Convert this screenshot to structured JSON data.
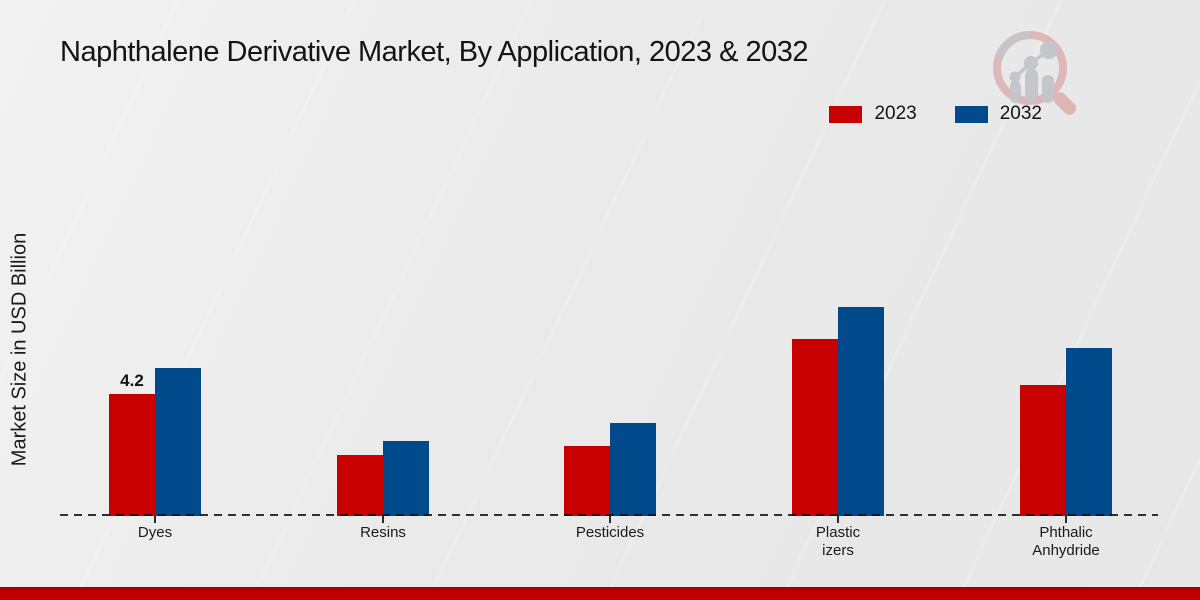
{
  "title": "Naphthalene Derivative Market, By Application, 2023 & 2032",
  "legend": [
    {
      "label": "2023",
      "color": "#c80000"
    },
    {
      "label": "2032",
      "color": "#00498a"
    }
  ],
  "watermark_icon": "magnifier-growth-chart-logo",
  "footer": {
    "band_color": "#c00000",
    "band_edge_color": "#9c0000"
  },
  "chart_data": {
    "type": "bar",
    "title": "Naphthalene Derivative Market, By Application, 2023 & 2032",
    "xlabel": "",
    "ylabel": "Market Size in USD Billion",
    "ylim": [
      0,
      8
    ],
    "grid": false,
    "legend_position": "top-right",
    "baseline_style": "dashed-zero-line",
    "categories": [
      "Dyes",
      "Resins",
      "Pesticides",
      "Plasticizers",
      "Phthalic Anhydride"
    ],
    "category_display_lines": [
      [
        "Dyes"
      ],
      [
        "Resins"
      ],
      [
        "Pesticides"
      ],
      [
        "Plastic",
        "izers"
      ],
      [
        "Phthalic",
        "Anhydride"
      ]
    ],
    "series": [
      {
        "name": "2023",
        "color": "#c80000",
        "values": [
          4.2,
          2.1,
          2.4,
          6.1,
          4.5
        ]
      },
      {
        "name": "2032",
        "color": "#00498a",
        "values": [
          5.1,
          2.6,
          3.2,
          7.2,
          5.8
        ]
      }
    ],
    "data_labels": [
      {
        "series": "2023",
        "category": "Dyes",
        "text": "4.2"
      }
    ]
  }
}
